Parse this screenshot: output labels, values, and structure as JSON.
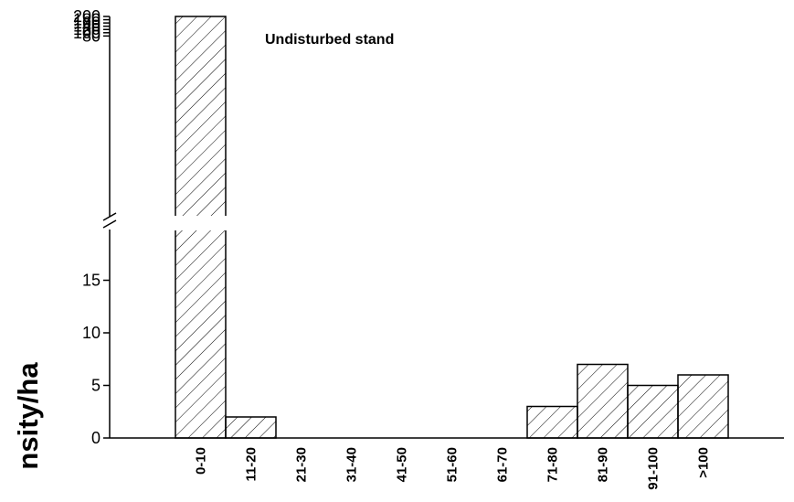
{
  "chart_data": {
    "type": "bar",
    "title": "Undisturbed stand",
    "ylabel": "nsity/ha",
    "xlabel": "",
    "categories": [
      "0-10",
      "11-20",
      "21-30",
      "31-40",
      "41-50",
      "51-60",
      "61-70",
      "71-80",
      "81-90",
      "91-100",
      ">100"
    ],
    "values": [
      200,
      2,
      0,
      0,
      0,
      0,
      0,
      3,
      7,
      5,
      6
    ],
    "y_axis_broken": true,
    "ylim_lower": [
      0,
      19
    ],
    "ylim_upper": [
      76,
      200
    ],
    "yticks_lower": [
      0,
      5,
      10,
      15
    ],
    "yticks_upper": [
      80,
      100,
      120,
      140,
      160,
      180,
      200
    ],
    "bar_fill": "diagonal-hatch",
    "bar_color": "#000000",
    "grid": false,
    "legend": "none"
  }
}
